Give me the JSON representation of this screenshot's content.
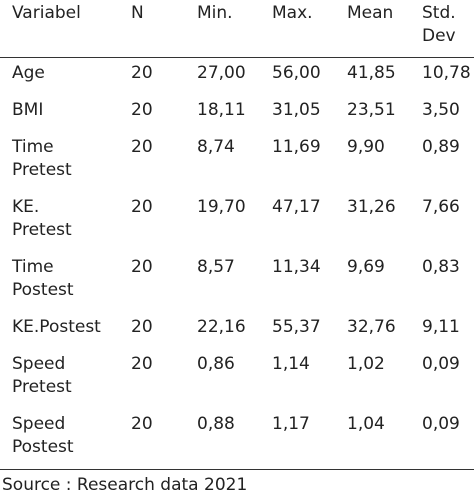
{
  "table": {
    "header": [
      [
        "Variabel"
      ],
      [
        "N"
      ],
      [
        "Min."
      ],
      [
        "Max."
      ],
      [
        "Mean"
      ],
      [
        "Std.",
        "Dev"
      ]
    ],
    "rows": [
      [
        [
          "Age"
        ],
        "20",
        "27,00",
        "56,00",
        "41,85",
        "10,78"
      ],
      [
        [
          "BMI"
        ],
        "20",
        "18,11",
        "31,05",
        "23,51",
        "3,50"
      ],
      [
        [
          "Time",
          "Pretest"
        ],
        "20",
        "8,74",
        "11,69",
        "9,90",
        "0,89"
      ],
      [
        [
          "KE.",
          "Pretest"
        ],
        "20",
        "19,70",
        "47,17",
        "31,26",
        "7,66"
      ],
      [
        [
          "Time",
          "Postest"
        ],
        "20",
        "8,57",
        "11,34",
        "9,69",
        "0,83"
      ],
      [
        [
          "KE.Postest"
        ],
        "20",
        "22,16",
        "55,37",
        "32,76",
        "9,11"
      ],
      [
        [
          "Speed",
          "Pretest"
        ],
        "20",
        "0,86",
        "1,14",
        "1,02",
        "0,09"
      ],
      [
        [
          "Speed",
          "Postest"
        ],
        "20",
        "0,88",
        "1,17",
        "1,04",
        "0,09"
      ]
    ]
  },
  "source": "Source : Research data 2021"
}
